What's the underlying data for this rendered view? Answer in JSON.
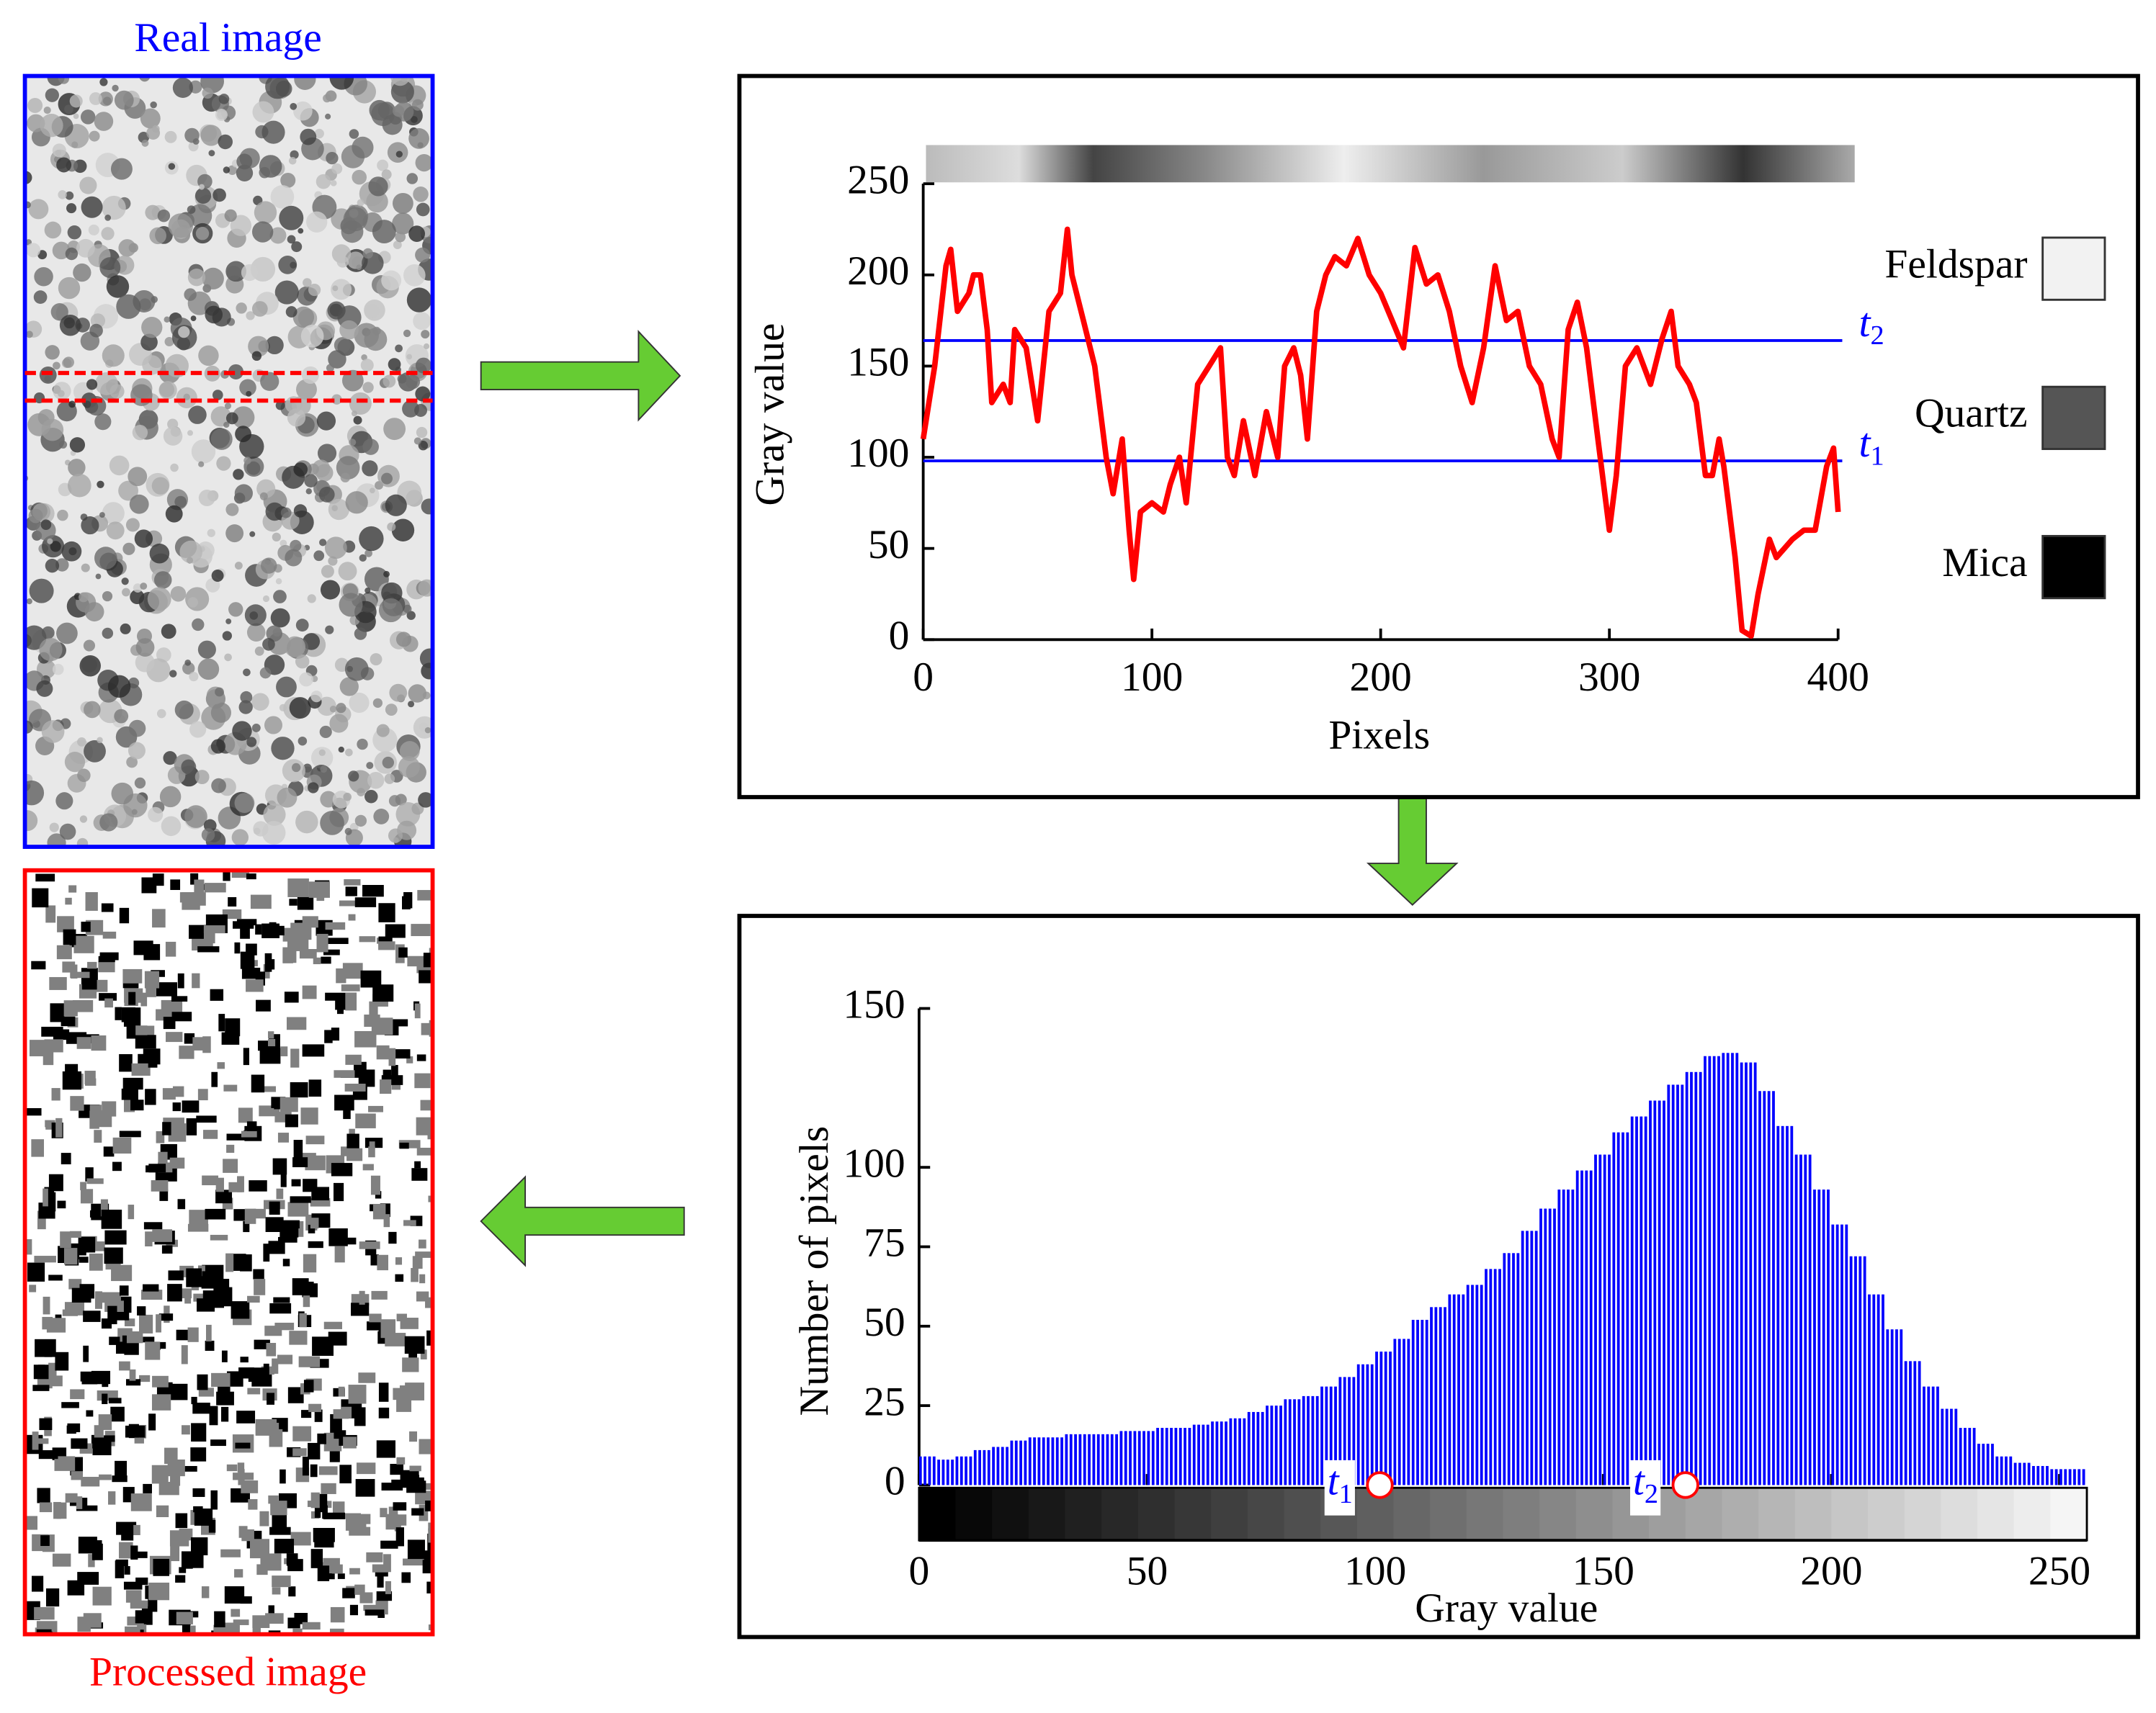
{
  "real_image_label": "Real image",
  "processed_image_label": "Processed image",
  "chart_data": [
    {
      "type": "line",
      "xlabel": "Pixels",
      "ylabel": "Gray value",
      "xlim": [
        0,
        400
      ],
      "ylim": [
        0,
        250
      ],
      "xticks": [
        0,
        100,
        200,
        300,
        400
      ],
      "yticks": [
        0,
        50,
        100,
        150,
        200,
        250
      ],
      "x": [
        0,
        5,
        10,
        12,
        15,
        20,
        22,
        25,
        28,
        30,
        35,
        38,
        40,
        45,
        50,
        55,
        60,
        63,
        65,
        70,
        75,
        80,
        83,
        87,
        90,
        92,
        95,
        100,
        105,
        108,
        112,
        115,
        120,
        125,
        130,
        133,
        136,
        140,
        145,
        150,
        155,
        158,
        162,
        165,
        168,
        172,
        176,
        180,
        185,
        190,
        195,
        200,
        205,
        210,
        215,
        220,
        225,
        230,
        235,
        240,
        245,
        250,
        255,
        260,
        265,
        270,
        275,
        278,
        282,
        286,
        290,
        295,
        300,
        303,
        307,
        312,
        318,
        323,
        327,
        330,
        335,
        338,
        342,
        345,
        348,
        350,
        352,
        355,
        358,
        362,
        365,
        370,
        373,
        380,
        385,
        390,
        395,
        398,
        400
      ],
      "series": [
        {
          "color": "#ff0000",
          "values": [
            110,
            150,
            205,
            214,
            180,
            190,
            200,
            200,
            170,
            130,
            140,
            130,
            170,
            160,
            120,
            180,
            190,
            225,
            200,
            175,
            150,
            100,
            80,
            110,
            60,
            33,
            70,
            75,
            70,
            85,
            100,
            75,
            140,
            150,
            160,
            100,
            90,
            120,
            90,
            125,
            100,
            150,
            160,
            145,
            110,
            180,
            200,
            210,
            205,
            220,
            200,
            190,
            175,
            160,
            215,
            195,
            200,
            180,
            150,
            130,
            160,
            205,
            175,
            180,
            150,
            140,
            110,
            100,
            170,
            185,
            160,
            110,
            60,
            90,
            150,
            160,
            140,
            165,
            180,
            150,
            140,
            130,
            90,
            90,
            110,
            95,
            75,
            45,
            5,
            2,
            25,
            55,
            45,
            55,
            60,
            60,
            95,
            105,
            70
          ]
        }
      ],
      "thresholds": [
        {
          "symbol": "t",
          "subscript": "1",
          "value": 98,
          "color": "#0000ff"
        },
        {
          "symbol": "t",
          "subscript": "2",
          "value": 164,
          "color": "#0000ff"
        }
      ],
      "phases": [
        {
          "name": "Feldspar",
          "color": "#f2f2f2"
        },
        {
          "name": "Quartz",
          "color": "#555555"
        },
        {
          "name": "Mica",
          "color": "#000000"
        }
      ]
    },
    {
      "type": "histogram",
      "xlabel": "Gray value",
      "ylabel": "Number of pixels",
      "xlim": [
        0,
        256
      ],
      "ylim": [
        0,
        150
      ],
      "xticks": [
        0,
        50,
        100,
        150,
        200,
        250
      ],
      "yticks": [
        0,
        25,
        50,
        75,
        100,
        150
      ],
      "color": "#0000ff",
      "bins": [
        0,
        4,
        8,
        12,
        16,
        20,
        24,
        28,
        32,
        36,
        40,
        44,
        48,
        52,
        56,
        60,
        64,
        68,
        72,
        76,
        80,
        84,
        88,
        92,
        96,
        100,
        104,
        108,
        112,
        116,
        120,
        124,
        128,
        132,
        136,
        140,
        144,
        148,
        152,
        156,
        160,
        164,
        168,
        172,
        176,
        180,
        184,
        188,
        192,
        196,
        200,
        204,
        208,
        212,
        216,
        220,
        224,
        228,
        232,
        236,
        240,
        244,
        248,
        252,
        256
      ],
      "values": [
        9,
        8,
        9,
        11,
        12,
        14,
        15,
        15,
        16,
        16,
        16,
        17,
        17,
        18,
        18,
        19,
        20,
        21,
        23,
        25,
        27,
        28,
        31,
        34,
        38,
        42,
        46,
        52,
        56,
        60,
        63,
        68,
        73,
        80,
        87,
        93,
        99,
        104,
        111,
        116,
        121,
        126,
        130,
        135,
        136,
        133,
        124,
        113,
        104,
        93,
        82,
        72,
        60,
        49,
        39,
        31,
        24,
        18,
        13,
        9,
        7,
        6,
        5,
        5
      ],
      "thresholds": [
        {
          "symbol": "t",
          "subscript": "1",
          "value": 101,
          "color": "#ff0000"
        },
        {
          "symbol": "t",
          "subscript": "2",
          "value": 168,
          "color": "#ff0000"
        }
      ]
    }
  ]
}
